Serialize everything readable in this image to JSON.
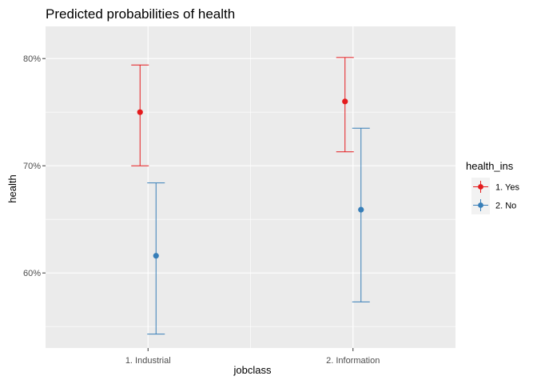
{
  "chart_data": {
    "type": "scatter",
    "subtype": "point-with-errorbars",
    "title": "Predicted probabilities of health",
    "xlabel": "jobclass",
    "ylabel": "health",
    "categories": [
      "1. Industrial",
      "2. Information"
    ],
    "ylim": [
      0.53,
      0.83
    ],
    "yticks": [
      0.6,
      0.7,
      0.8
    ],
    "ytick_labels": [
      "60%",
      "70%",
      "80%"
    ],
    "grid": true,
    "legend": {
      "title": "health_ins",
      "position": "right"
    },
    "series": [
      {
        "name": "1. Yes",
        "color": "#e41a1c",
        "points": [
          {
            "category": "1. Industrial",
            "value": 0.75,
            "low": 0.7,
            "high": 0.794
          },
          {
            "category": "2. Information",
            "value": 0.76,
            "low": 0.713,
            "high": 0.801
          }
        ]
      },
      {
        "name": "2. No",
        "color": "#377eb8",
        "points": [
          {
            "category": "1. Industrial",
            "value": 0.616,
            "low": 0.543,
            "high": 0.684
          },
          {
            "category": "2. Information",
            "value": 0.659,
            "low": 0.573,
            "high": 0.735
          }
        ]
      }
    ]
  }
}
